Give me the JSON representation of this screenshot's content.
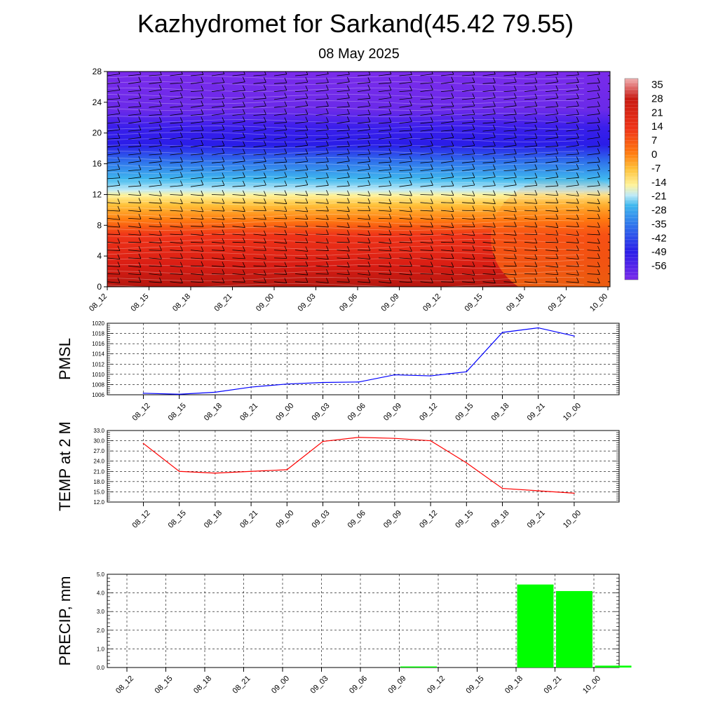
{
  "header": {
    "title": "Kazhydromet for Sarkand(45.42 79.55)",
    "date": "08 May 2025"
  },
  "chart_data": [
    {
      "type": "heatmap",
      "panel": "cross-section",
      "x_ticks": [
        "08_12",
        "08_15",
        "08_18",
        "08_21",
        "09_00",
        "09_03",
        "09_06",
        "09_09",
        "09_12",
        "09_15",
        "09_18",
        "09_21",
        "10_00"
      ],
      "y_ticks": [
        "0",
        "4",
        "8",
        "12",
        "16",
        "20",
        "24",
        "28"
      ],
      "ylim": [
        0,
        28
      ],
      "colorbar_labels": [
        "35",
        "28",
        "21",
        "14",
        "7",
        "0",
        "-7",
        "-14",
        "-21",
        "-28",
        "-35",
        "-42",
        "-49",
        "-56"
      ],
      "colorbar_range": [
        -63,
        38
      ],
      "colors": {
        "top": "#7a2bea",
        "blue": "#2a1de8",
        "cyan": "#3fb8ee",
        "yellow": "#fff39a",
        "orange": "#ff8a10",
        "red": "#e0201a",
        "darkred": "#b5170f"
      },
      "wind_barbs": "black",
      "grid": false
    },
    {
      "type": "line",
      "ylabel": "PMSL",
      "categories": [
        "08_12",
        "08_15",
        "08_18",
        "08_21",
        "09_00",
        "09_03",
        "09_06",
        "09_09",
        "09_12",
        "09_15",
        "09_18",
        "09_21",
        "10_00"
      ],
      "values": [
        1006.3,
        1006.1,
        1006.5,
        1007.5,
        1008.1,
        1008.4,
        1008.5,
        1009.9,
        1009.7,
        1010.5,
        1018.2,
        1019.1,
        1017.5
      ],
      "y_ticks": [
        "1006",
        "1008",
        "1010",
        "1012",
        "1014",
        "1016",
        "1018",
        "1020"
      ],
      "ylim": [
        1006,
        1020
      ],
      "color": "#0000ff",
      "grid": true
    },
    {
      "type": "line",
      "ylabel": "TEMP at 2 M",
      "categories": [
        "08_12",
        "08_15",
        "08_18",
        "08_21",
        "09_00",
        "09_03",
        "09_06",
        "09_09",
        "09_12",
        "09_15",
        "09_18",
        "09_21",
        "10_00"
      ],
      "values": [
        29.2,
        21.0,
        20.5,
        21.0,
        21.5,
        29.8,
        31.0,
        30.7,
        30.0,
        23.5,
        16.0,
        15.3,
        14.6
      ],
      "y_ticks": [
        "12.0",
        "15.0",
        "18.0",
        "21.0",
        "24.0",
        "27.0",
        "30.0",
        "33.0"
      ],
      "ylim": [
        12,
        33
      ],
      "color": "#ff0000",
      "grid": true
    },
    {
      "type": "bar",
      "ylabel": "PRECIP, mm",
      "categories": [
        "08_12",
        "08_15",
        "08_18",
        "08_21",
        "09_00",
        "09_03",
        "09_06",
        "09_09",
        "09_12",
        "09_15",
        "09_18",
        "09_21",
        "10_00"
      ],
      "values": [
        0,
        0,
        0,
        0,
        0,
        0,
        0,
        0.05,
        0,
        0,
        4.45,
        4.1,
        0.1
      ],
      "y_ticks": [
        "0.0",
        "1.0",
        "2.0",
        "3.0",
        "4.0",
        "5.0"
      ],
      "ylim": [
        0,
        5
      ],
      "color": "#00ff00",
      "grid": true
    }
  ]
}
